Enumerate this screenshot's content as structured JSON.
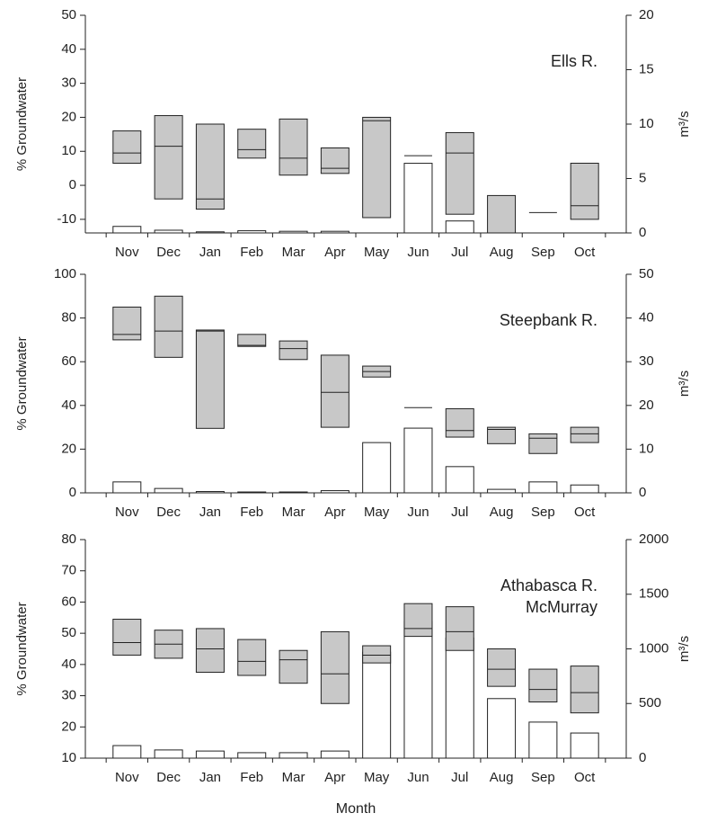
{
  "chart_data": [
    {
      "type": "box",
      "annotation": [
        "Ells R."
      ],
      "ylabel": "% Groundwater",
      "y2label": "m³/s",
      "categories": [
        "Nov",
        "Dec",
        "Jan",
        "Feb",
        "Mar",
        "Apr",
        "May",
        "Jun",
        "Jul",
        "Aug",
        "Sep",
        "Oct"
      ],
      "ylim": [
        -14,
        50
      ],
      "yticks": [
        -10,
        0,
        10,
        20,
        30,
        40,
        50
      ],
      "y2lim": [
        0,
        20
      ],
      "y2ticks": [
        0,
        5,
        10,
        15,
        20
      ],
      "box": {
        "color": "#c8c8c8",
        "low": [
          6.5,
          -4,
          -7,
          8,
          3,
          3.5,
          -9.5,
          null,
          -8.5,
          -14,
          null,
          -10
        ],
        "high": [
          16,
          20.5,
          18,
          16.5,
          19.5,
          11,
          20,
          null,
          15.5,
          -3,
          null,
          6.5
        ],
        "median": [
          9.5,
          11.5,
          -4,
          10.5,
          8,
          5,
          19,
          8.7,
          9.5,
          null,
          -8,
          -6
        ]
      },
      "bars": {
        "axis": "y2",
        "color": "#ffffff",
        "values": [
          0.6,
          0.25,
          0.1,
          0.2,
          0.15,
          0.15,
          null,
          6.4,
          1.1,
          null,
          null,
          null
        ]
      }
    },
    {
      "type": "box",
      "annotation": [
        "Steepbank R."
      ],
      "ylabel": "% Groundwater",
      "y2label": "m³/s",
      "categories": [
        "Nov",
        "Dec",
        "Jan",
        "Feb",
        "Mar",
        "Apr",
        "May",
        "Jun",
        "Jul",
        "Aug",
        "Sep",
        "Oct"
      ],
      "ylim": [
        0,
        100
      ],
      "yticks": [
        0,
        20,
        40,
        60,
        80,
        100
      ],
      "y2lim": [
        0,
        50
      ],
      "y2ticks": [
        0,
        10,
        20,
        30,
        40,
        50
      ],
      "box": {
        "color": "#c8c8c8",
        "low": [
          70,
          62,
          29.5,
          67,
          61,
          30,
          53,
          null,
          25.5,
          22.5,
          18,
          23
        ],
        "high": [
          85,
          90,
          74.5,
          72.5,
          69.5,
          63,
          58,
          null,
          38.5,
          30,
          27,
          30
        ],
        "median": [
          72.5,
          74,
          74,
          67.5,
          66,
          46,
          55.5,
          39,
          28.5,
          29,
          25,
          27
        ]
      },
      "bars": {
        "axis": "y2",
        "color": "#ffffff",
        "values": [
          2.5,
          1.0,
          0.3,
          0.2,
          0.2,
          0.5,
          11.5,
          14.8,
          6,
          0.8,
          2.5,
          1.8
        ]
      }
    },
    {
      "type": "box",
      "annotation": [
        "Athabasca R.",
        "McMurray"
      ],
      "ylabel": "% Groundwater",
      "y2label": "m³/s",
      "xlabel": "Month",
      "categories": [
        "Nov",
        "Dec",
        "Jan",
        "Feb",
        "Mar",
        "Apr",
        "May",
        "Jun",
        "Jul",
        "Aug",
        "Sep",
        "Oct"
      ],
      "ylim": [
        10,
        80
      ],
      "yticks": [
        10,
        20,
        30,
        40,
        50,
        60,
        70,
        80
      ],
      "y2lim": [
        0,
        2000
      ],
      "y2ticks": [
        0,
        500,
        1000,
        1500,
        2000
      ],
      "box": {
        "color": "#c8c8c8",
        "low": [
          43,
          42,
          37.5,
          36.5,
          34,
          27.5,
          40.5,
          49,
          44.5,
          33,
          28,
          24.5
        ],
        "high": [
          54.5,
          51,
          51.5,
          48,
          44.5,
          50.5,
          46,
          59.5,
          58.5,
          45,
          38.5,
          39.5
        ],
        "median": [
          47,
          46.5,
          45,
          41,
          41.5,
          37,
          43,
          51.5,
          50.5,
          38.5,
          32,
          31
        ]
      },
      "bars": {
        "axis": "y2",
        "color": "#ffffff",
        "values": [
          115,
          75,
          65,
          50,
          50,
          65,
          970,
          1250,
          1100,
          545,
          330,
          230
        ]
      }
    }
  ]
}
